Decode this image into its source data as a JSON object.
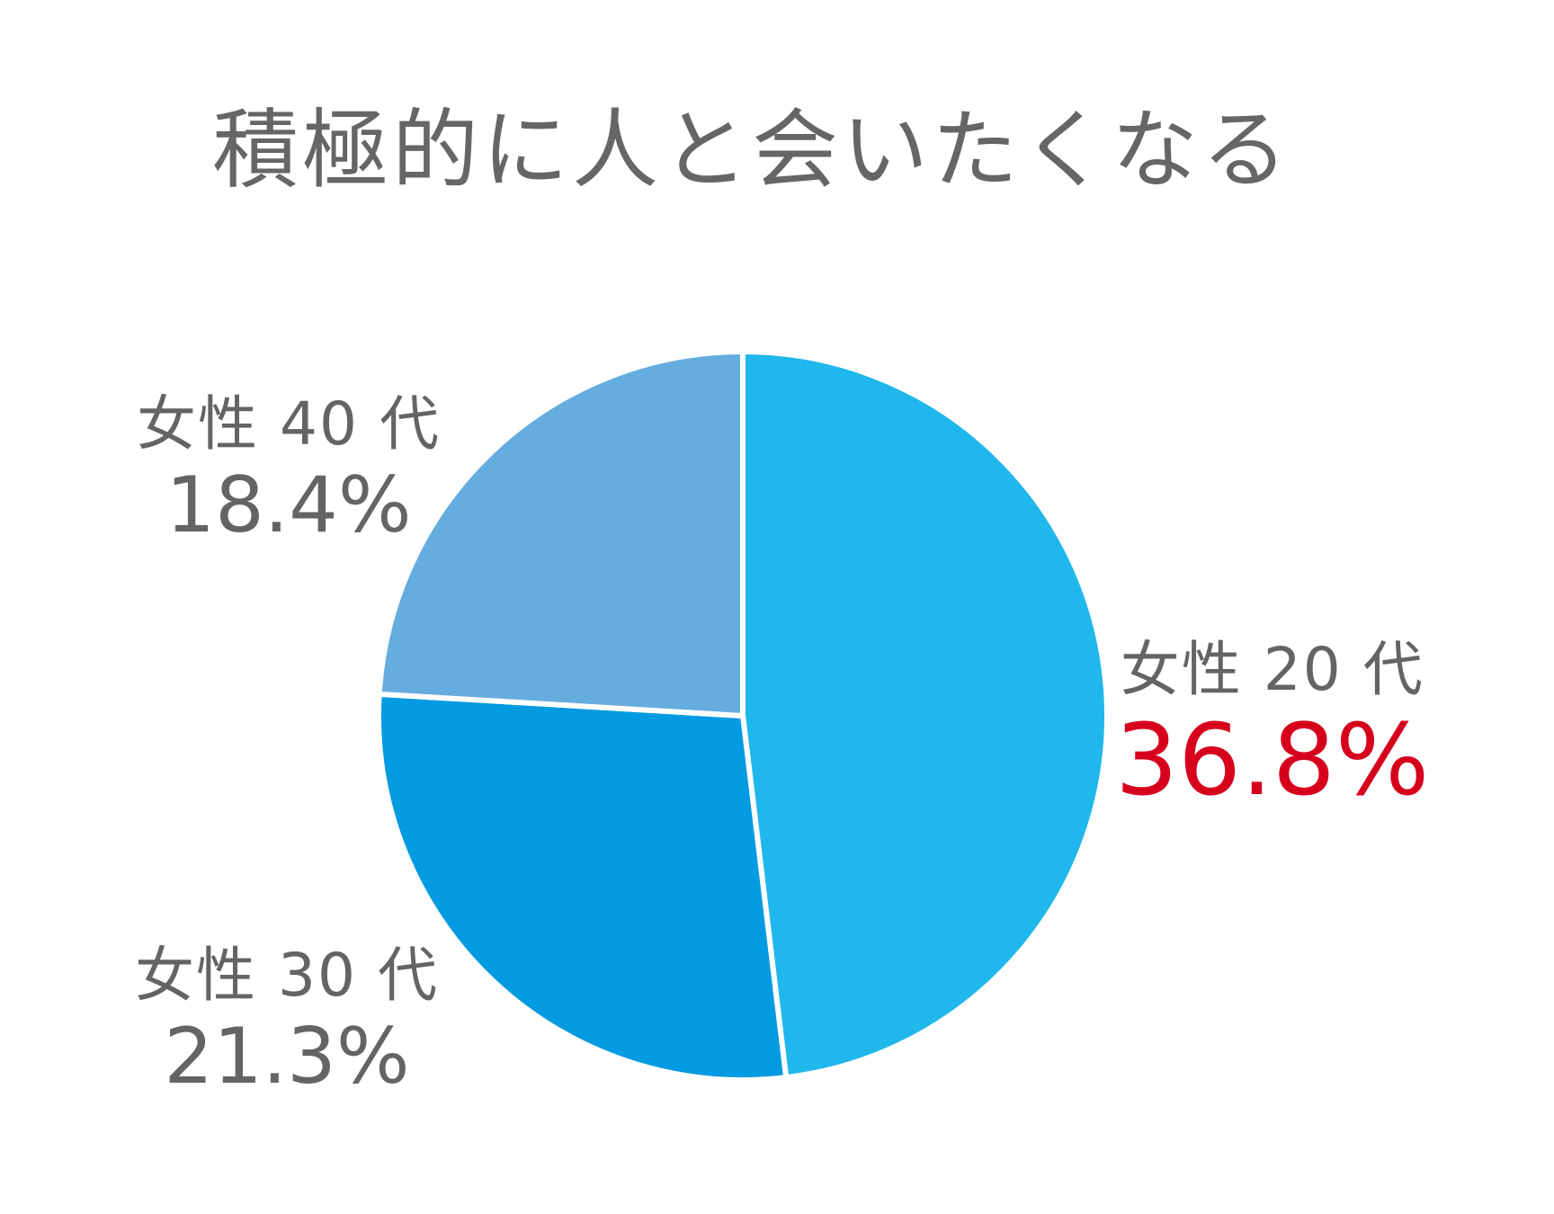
{
  "chart_data": {
    "type": "pie",
    "title": "積極的に人と会いたくなる",
    "slices": [
      {
        "name": "女性 20 代",
        "value": 36.8,
        "value_label": "36.8%",
        "color": "#20b7ec",
        "label_color": "#646464",
        "value_color": "#d6001c"
      },
      {
        "name": "女性 30 代",
        "value": 21.3,
        "value_label": "21.3%",
        "color": "#029ae0",
        "label_color": "#646464",
        "value_color": "#646464"
      },
      {
        "name": "女性 40 代",
        "value": 18.4,
        "value_label": "18.4%",
        "color": "#66addf",
        "label_color": "#646464",
        "value_color": "#646464"
      }
    ],
    "start_angle": "12 o'clock",
    "direction": "clockwise",
    "separator_color": "#ffffff",
    "legend": "none (direct labels)"
  }
}
